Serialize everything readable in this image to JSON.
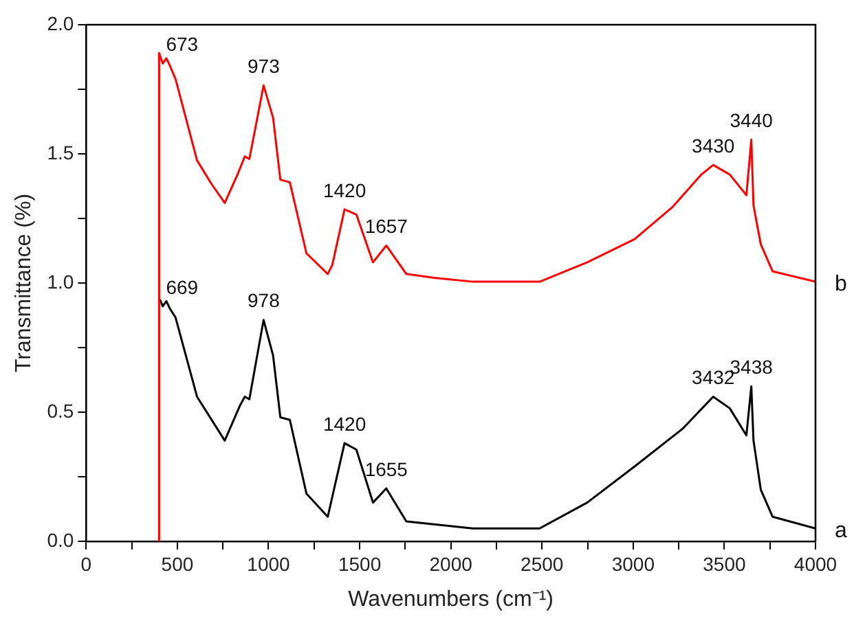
{
  "chart_data": {
    "type": "line",
    "xlabel": "Wavenumbers (cm⁻¹)",
    "ylabel": "Transmittance (%)",
    "xlim": [
      0,
      4000
    ],
    "ylim": [
      0,
      2.0
    ],
    "xticks": [
      0,
      {
        "value": 250,
        "label": null
      },
      500,
      {
        "value": 750,
        "label": null
      },
      1000,
      {
        "value": 1250,
        "label": null
      },
      1500,
      {
        "value": 1750,
        "label": null
      },
      2000,
      {
        "value": 2250,
        "label": null
      },
      2500,
      {
        "value": 2750,
        "label": null
      },
      3000,
      {
        "value": 3250,
        "label": null
      },
      3500,
      {
        "value": 3750,
        "label": null
      },
      4000
    ],
    "yticks": [
      {
        "value": 0,
        "label": "0.0"
      },
      {
        "value": 0.25,
        "label": null
      },
      {
        "value": 0.5,
        "label": "0.5"
      },
      {
        "value": 0.75,
        "label": null
      },
      {
        "value": 1,
        "label": "1.0"
      },
      {
        "value": 1.25,
        "label": null
      },
      {
        "value": 1.5,
        "label": "1.5"
      },
      {
        "value": 1.75,
        "label": null
      },
      {
        "value": 2,
        "label": "2.0"
      }
    ],
    "grid": false,
    "legend": false,
    "marker": "none",
    "line_style": "solid",
    "series": [
      {
        "name": "b",
        "color": "#ff0000",
        "x": [
          400,
          400,
          420,
          440,
          460,
          490,
          608,
          686,
          760,
          830,
          870,
          895,
          973,
          1025,
          1065,
          1117,
          1208,
          1325,
          1350,
          1417,
          1482,
          1573,
          1646,
          1756,
          1910,
          2121,
          2487,
          2748,
          3008,
          3217,
          3374,
          3439,
          3530,
          3621,
          3648,
          3660,
          3700,
          3765,
          4000
        ],
        "values": [
          0,
          1.89,
          1.85,
          1.87,
          1.84,
          1.79,
          1.475,
          1.385,
          1.31,
          1.42,
          1.49,
          1.48,
          1.765,
          1.64,
          1.4,
          1.39,
          1.115,
          1.035,
          1.07,
          1.285,
          1.265,
          1.08,
          1.145,
          1.035,
          1.02,
          1.005,
          1.005,
          1.08,
          1.17,
          1.295,
          1.42,
          1.457,
          1.42,
          1.34,
          1.555,
          1.3,
          1.15,
          1.045,
          1.005
        ]
      },
      {
        "name": "a",
        "color": "#000000",
        "x": [
          407,
          420,
          440,
          460,
          490,
          608,
          760,
          843,
          870,
          895,
          973,
          1025,
          1065,
          1117,
          1208,
          1325,
          1417,
          1482,
          1573,
          1646,
          1756,
          2121,
          2487,
          2748,
          3008,
          3270,
          3439,
          3530,
          3621,
          3648,
          3660,
          3700,
          3765,
          4000
        ],
        "values": [
          0.933,
          0.91,
          0.93,
          0.9,
          0.867,
          0.56,
          0.39,
          0.525,
          0.56,
          0.55,
          0.857,
          0.72,
          0.48,
          0.47,
          0.185,
          0.095,
          0.38,
          0.355,
          0.15,
          0.205,
          0.077,
          0.05,
          0.05,
          0.15,
          0.29,
          0.435,
          0.56,
          0.515,
          0.41,
          0.6,
          0.39,
          0.2,
          0.095,
          0.05
        ]
      }
    ],
    "annotations": [
      {
        "text": "673",
        "x": 420,
        "y": 1.85
      },
      {
        "text": "973",
        "x": 973,
        "y": 1.765
      },
      {
        "text": "1420",
        "x": 1417,
        "y": 1.285
      },
      {
        "text": "1657",
        "x": 1646,
        "y": 1.145
      },
      {
        "text": "3430",
        "x": 3439,
        "y": 1.457
      },
      {
        "text": "3440",
        "x": 3648,
        "y": 1.555
      },
      {
        "text": "669",
        "x": 420,
        "y": 0.91
      },
      {
        "text": "978",
        "x": 973,
        "y": 0.857
      },
      {
        "text": "1420",
        "x": 1417,
        "y": 0.38
      },
      {
        "text": "1655",
        "x": 1646,
        "y": 0.205
      },
      {
        "text": "3432",
        "x": 3439,
        "y": 0.56
      },
      {
        "text": "3438",
        "x": 3648,
        "y": 0.6
      }
    ]
  }
}
